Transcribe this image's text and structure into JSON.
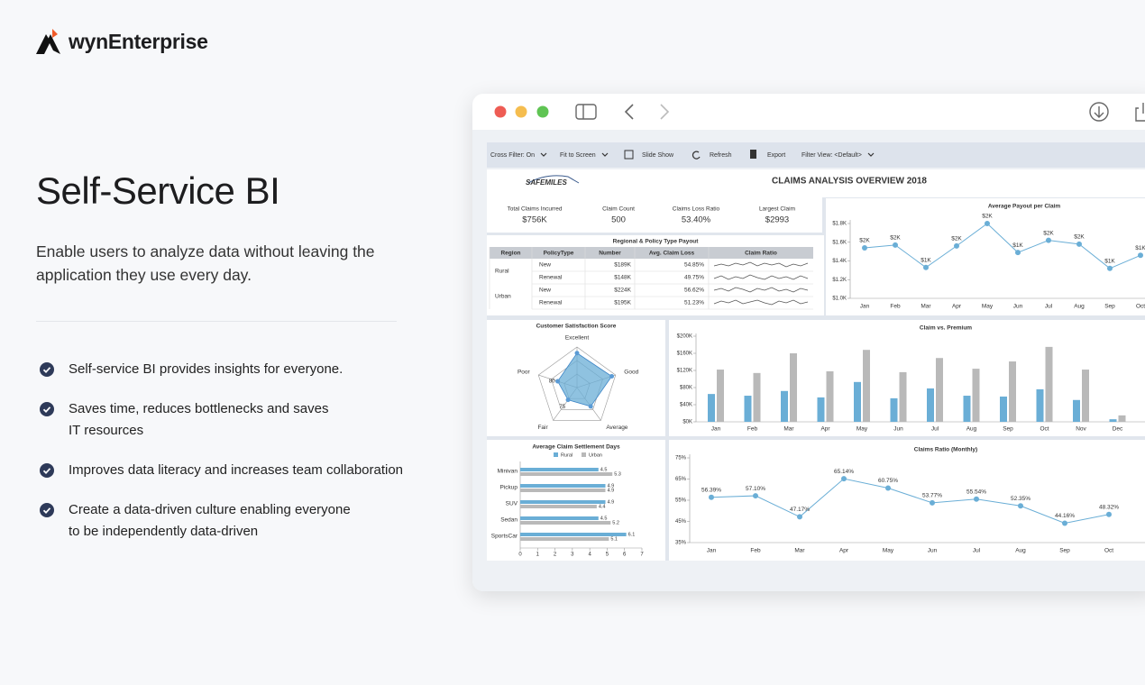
{
  "header": {
    "logo": "wynEnterprise"
  },
  "hero": {
    "title": "Self-Service BI",
    "subtitle": "Enable users to analyze data without leaving the application they use every day.",
    "features": [
      {
        "lines": [
          "Self-service BI provides insights for everyone."
        ]
      },
      {
        "lines": [
          "Saves time, reduces bottlenecks and saves",
          "IT resources"
        ]
      },
      {
        "lines": [
          "Improves data literacy and increases team collaboration"
        ]
      },
      {
        "lines": [
          "Create a data-driven culture enabling everyone",
          "to be independently data-driven"
        ]
      }
    ]
  },
  "toolbar": [
    "Cross Filter: On",
    "Fit to Screen",
    "Slide Show",
    "Refresh",
    "Export",
    "Filter View: <Default>"
  ],
  "dashboard": {
    "logo": "SAFEMILES",
    "title": "CLAIMS ANALYSIS OVERVIEW 2018",
    "kpis": [
      {
        "label": "Total Claims Incurred",
        "value": "$756K"
      },
      {
        "label": "Claim Count",
        "value": "500"
      },
      {
        "label": "Claims Loss Ratio",
        "value": "53.40%"
      },
      {
        "label": "Largest Claim",
        "value": "$2993"
      }
    ],
    "table": {
      "title": "Regional & Policy Type Payout",
      "columns": [
        "Region",
        "PolicyType",
        "Number",
        "Avg. Claim Loss",
        "Claim Ratio"
      ],
      "groups": [
        {
          "region": "Rural",
          "rows": [
            [
              "New",
              "$189K",
              "54.85%"
            ],
            [
              "Renewal",
              "$148K",
              "49.75%"
            ]
          ]
        },
        {
          "region": "Urban",
          "rows": [
            [
              "New",
              "$224K",
              "56.62%"
            ],
            [
              "Renewal",
              "$195K",
              "51.23%"
            ]
          ]
        }
      ]
    },
    "payout": {
      "type": "line",
      "title": "Average Payout per Claim",
      "color": "#6aaed6",
      "categories": [
        "Jan",
        "Feb",
        "Mar",
        "Apr",
        "May",
        "Jun",
        "Jul",
        "Aug",
        "Sep",
        "Oct"
      ],
      "values": [
        1.54,
        1.57,
        1.33,
        1.56,
        1.8,
        1.49,
        1.62,
        1.58,
        1.32,
        1.46
      ],
      "value_labels": [
        "$2K",
        "$2K",
        "$1K",
        "$2K",
        "$2K",
        "$1K",
        "$2K",
        "$2K",
        "$1K",
        "$1K"
      ],
      "ylim": [
        1.0,
        1.8
      ],
      "yticks": [
        {
          "value": 1.0,
          "label": "$1.0K"
        },
        {
          "value": 1.2,
          "label": "$1.2K"
        },
        {
          "value": 1.4,
          "label": "$1.4K"
        },
        {
          "value": 1.6,
          "label": "$1.6K"
        },
        {
          "value": 1.8,
          "label": "$1.8K"
        }
      ]
    },
    "satisfaction": {
      "type": "radar",
      "title": "Customer Satisfaction Score",
      "color": "#6aaed6",
      "categories": [
        "Excellent",
        "Good",
        "Average",
        "Fair",
        "Poor"
      ],
      "values": [
        94,
        96,
        83,
        75,
        80
      ],
      "value_labels": [
        null,
        null,
        null,
        "75",
        "80"
      ],
      "rlim": [
        60,
        100
      ]
    },
    "claim_premium": {
      "type": "bar",
      "title": "Claim vs. Premium",
      "categories": [
        "Jan",
        "Feb",
        "Mar",
        "Apr",
        "May",
        "Jun",
        "Jul",
        "Aug",
        "Sep",
        "Oct",
        "Nov",
        "Dec"
      ],
      "series": [
        {
          "color": "#6aaed6",
          "values": [
            65,
            61,
            72,
            57,
            93,
            55,
            78,
            61,
            59,
            76,
            51,
            6
          ]
        },
        {
          "color": "#b9b9b9",
          "values": [
            122,
            114,
            160,
            118,
            168,
            116,
            149,
            124,
            141,
            175,
            122,
            15
          ]
        }
      ],
      "ylim": [
        0,
        200
      ],
      "yticks": [
        {
          "value": 0,
          "label": "$0K"
        },
        {
          "value": 40,
          "label": "$40K"
        },
        {
          "value": 80,
          "label": "$80K"
        },
        {
          "value": 120,
          "label": "$120K"
        },
        {
          "value": 160,
          "label": "$160K"
        },
        {
          "value": 200,
          "label": "$200K"
        }
      ]
    },
    "settlement": {
      "type": "hbar",
      "title": "Average Claim Settlement Days",
      "categories": [
        "Minivan",
        "Pickup",
        "SUV",
        "Sedan",
        "SportsCar"
      ],
      "series": [
        {
          "name": "Rural",
          "color": "#6aaed6",
          "values": [
            4.5,
            4.9,
            4.9,
            4.5,
            6.1
          ]
        },
        {
          "name": "Urban",
          "color": "#b9b9b9",
          "values": [
            5.3,
            4.9,
            4.4,
            5.2,
            5.1
          ]
        }
      ],
      "xlim": [
        0,
        7
      ],
      "xticks": [
        0,
        1,
        2,
        3,
        4,
        5,
        6,
        7
      ]
    },
    "claims_ratio": {
      "type": "line",
      "title": "Claims Ratio (Monthly)",
      "color": "#6aaed6",
      "categories": [
        "Jan",
        "Feb",
        "Mar",
        "Apr",
        "May",
        "Jun",
        "Jul",
        "Aug",
        "Sep",
        "Oct"
      ],
      "values": [
        56.39,
        57.1,
        47.17,
        65.14,
        60.75,
        53.77,
        55.54,
        52.35,
        44.16,
        48.32
      ],
      "value_labels": [
        "56.39%",
        "57.10%",
        "47.17%",
        "65.14%",
        "60.75%",
        "53.77%",
        "55.54%",
        "52.35%",
        "44.16%",
        "48.32%"
      ],
      "ylim": [
        35,
        75
      ],
      "yticks": [
        {
          "value": 35,
          "label": "35%"
        },
        {
          "value": 45,
          "label": "45%"
        },
        {
          "value": 55,
          "label": "55%"
        },
        {
          "value": 65,
          "label": "65%"
        },
        {
          "value": 75,
          "label": "75%"
        }
      ]
    }
  }
}
